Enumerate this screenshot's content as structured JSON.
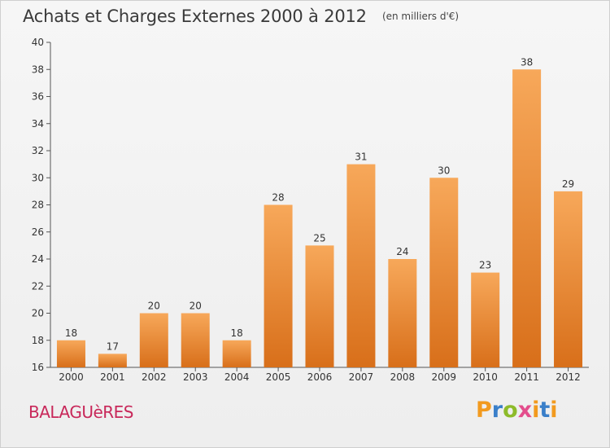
{
  "title": "Achats et Charges Externes 2000 à 2012",
  "subtitle": "(en milliers d'€)",
  "commune": "BALAGUèRES",
  "logo": {
    "letters": [
      "P",
      "r",
      "o",
      "x",
      "i",
      "t",
      "i"
    ],
    "colors": [
      "#f29a1e",
      "#3a7fc9",
      "#8dbb2a",
      "#e34d8c",
      "#f29a1e",
      "#3a7fc9",
      "#f29a1e"
    ]
  },
  "colors": {
    "bar_top": "#f7a85a",
    "bar_bottom": "#d86f1a",
    "commune": "#c8285a"
  },
  "chart_data": {
    "type": "bar",
    "categories": [
      "2000",
      "2001",
      "2002",
      "2003",
      "2004",
      "2005",
      "2006",
      "2007",
      "2008",
      "2009",
      "2010",
      "2011",
      "2012"
    ],
    "values": [
      18,
      17,
      20,
      20,
      18,
      28,
      25,
      31,
      24,
      30,
      23,
      38,
      29
    ],
    "title": "Achats et Charges Externes 2000 à 2012",
    "ylim": [
      16,
      40
    ],
    "yticks": [
      16,
      18,
      20,
      22,
      24,
      26,
      28,
      30,
      32,
      34,
      36,
      38,
      40
    ],
    "grid": false
  }
}
